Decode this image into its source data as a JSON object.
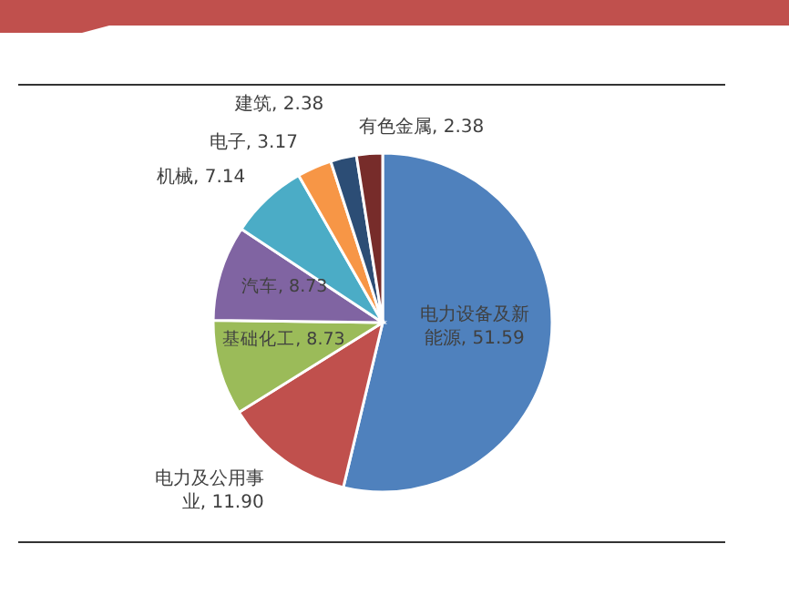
{
  "chart_data": {
    "type": "pie",
    "categories": [
      "电力设备及新能源",
      "电力及公用事业",
      "基础化工",
      "汽车",
      "机械",
      "电子",
      "建筑",
      "有色金属"
    ],
    "values": [
      51.59,
      11.9,
      8.73,
      8.73,
      7.14,
      3.17,
      2.38,
      2.38
    ],
    "value_labels": [
      "51.59",
      "11.90",
      "8.73",
      "8.73",
      "7.14",
      "3.17",
      "2.38",
      "2.38"
    ],
    "colors": [
      "#4f81bd",
      "#c0504d",
      "#9bbb59",
      "#8064a2",
      "#4bacc6",
      "#f79646",
      "#2c4d75",
      "#772c2a"
    ],
    "legend": false
  }
}
